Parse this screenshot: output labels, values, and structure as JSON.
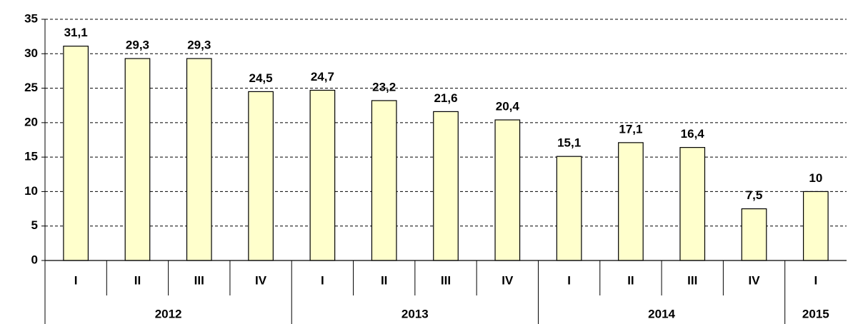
{
  "chart_data": {
    "type": "bar",
    "categories": [
      "I",
      "II",
      "III",
      "IV",
      "I",
      "II",
      "III",
      "IV",
      "I",
      "II",
      "III",
      "IV",
      "I"
    ],
    "groups": [
      {
        "label": "2012",
        "count": 4
      },
      {
        "label": "2013",
        "count": 4
      },
      {
        "label": "2014",
        "count": 4
      },
      {
        "label": "2015",
        "count": 1
      }
    ],
    "values": [
      31.1,
      29.3,
      29.3,
      24.5,
      24.7,
      23.2,
      21.6,
      20.4,
      15.1,
      17.1,
      16.4,
      7.5,
      10
    ],
    "value_labels": [
      "31,1",
      "29,3",
      "29,3",
      "24,5",
      "24,7",
      "23,2",
      "21,6",
      "20,4",
      "15,1",
      "17,1",
      "16,4",
      "7,5",
      "10"
    ],
    "color": "#ffffcc",
    "ylim": [
      0,
      35
    ],
    "yticks": [
      0,
      5,
      10,
      15,
      20,
      25,
      30,
      35
    ],
    "grid": true
  }
}
